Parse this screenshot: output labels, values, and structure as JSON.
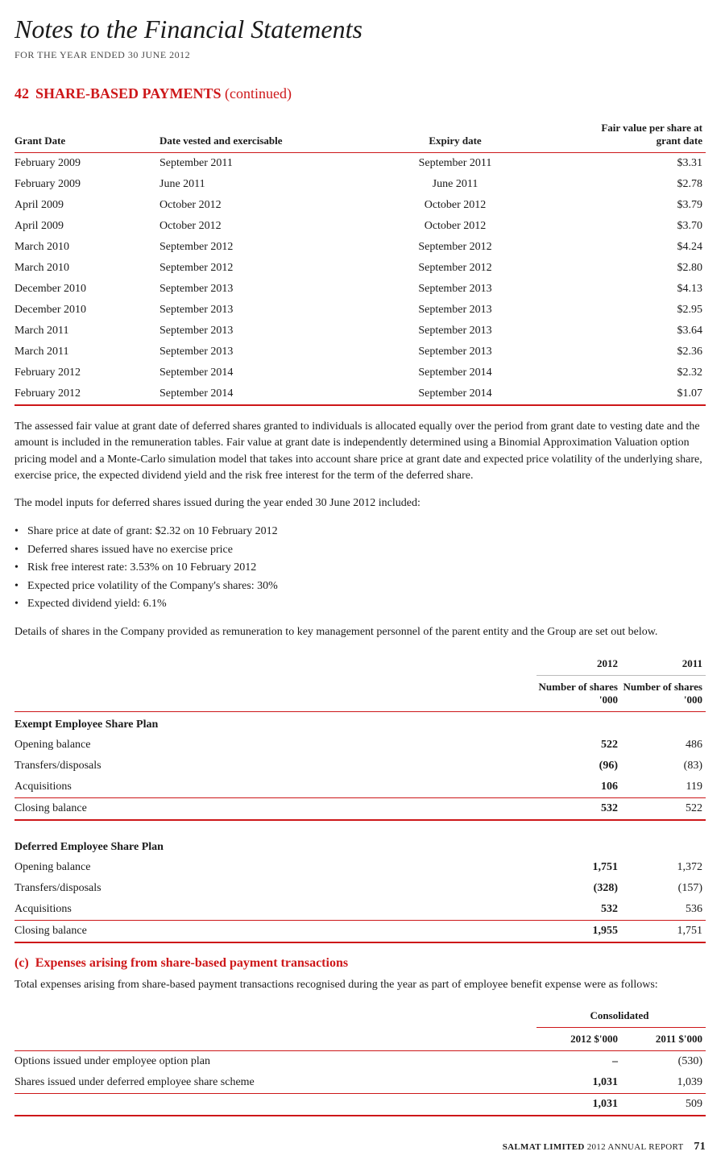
{
  "title": "Notes to the Financial Statements",
  "subtitle": "FOR THE YEAR ENDED 30 JUNE 2012",
  "section": {
    "number": "42",
    "label": "SHARE-BASED PAYMENTS",
    "continued": "(continued)"
  },
  "table1": {
    "headers": {
      "grant": "Grant Date",
      "vested": "Date vested and exercisable",
      "expiry": "Expiry date",
      "fair": "Fair value per share at grant date"
    },
    "rows": [
      {
        "grant": "February 2009",
        "vested": "September 2011",
        "expiry": "September 2011",
        "fair": "$3.31"
      },
      {
        "grant": "February 2009",
        "vested": "June 2011",
        "expiry": "June 2011",
        "fair": "$2.78"
      },
      {
        "grant": "April 2009",
        "vested": "October 2012",
        "expiry": "October 2012",
        "fair": "$3.79"
      },
      {
        "grant": "April 2009",
        "vested": "October 2012",
        "expiry": "October 2012",
        "fair": "$3.70"
      },
      {
        "grant": "March 2010",
        "vested": "September 2012",
        "expiry": "September 2012",
        "fair": "$4.24"
      },
      {
        "grant": "March 2010",
        "vested": "September 2012",
        "expiry": "September 2012",
        "fair": "$2.80"
      },
      {
        "grant": "December 2010",
        "vested": "September 2013",
        "expiry": "September 2013",
        "fair": "$4.13"
      },
      {
        "grant": "December 2010",
        "vested": "September 2013",
        "expiry": "September 2013",
        "fair": "$2.95"
      },
      {
        "grant": "March 2011",
        "vested": "September 2013",
        "expiry": "September 2013",
        "fair": "$3.64"
      },
      {
        "grant": "March 2011",
        "vested": "September 2013",
        "expiry": "September 2013",
        "fair": "$2.36"
      },
      {
        "grant": "February 2012",
        "vested": "September 2014",
        "expiry": "September 2014",
        "fair": "$2.32"
      },
      {
        "grant": "February 2012",
        "vested": "September 2014",
        "expiry": "September 2014",
        "fair": "$1.07"
      }
    ]
  },
  "para1": "The assessed fair value at grant date of deferred shares granted to individuals is allocated equally over the period from grant date to vesting date and the amount is included in the remuneration tables. Fair value at grant date is independently determined using a Binomial Approximation Valuation option pricing model and a Monte-Carlo simulation model that takes into account share price at grant date and expected price volatility of the underlying share, exercise price, the expected dividend yield and the risk free interest for the term of the deferred share.",
  "para2": "The model inputs for deferred shares issued during the year ended 30 June 2012 included:",
  "bullets": [
    "Share price at date of grant: $2.32 on 10 February 2012",
    "Deferred shares issued have no exercise price",
    "Risk free interest rate: 3.53% on 10 February 2012",
    "Expected price volatility of the Company's shares: 30%",
    "Expected dividend yield: 6.1%"
  ],
  "para3": "Details of shares in the Company provided as remuneration to key management personnel of the parent entity and the Group are set out below.",
  "table2": {
    "headers": {
      "y2012": "2012",
      "y2011": "2011",
      "unit2012": "Number of shares '000",
      "unit2011": "Number of shares '000"
    },
    "plan1": {
      "title": "Exempt Employee Share Plan",
      "rows": [
        {
          "label": "Opening balance",
          "y12": "522",
          "y11": "486"
        },
        {
          "label": "Transfers/disposals",
          "y12": "(96)",
          "y11": "(83)"
        },
        {
          "label": "Acquisitions",
          "y12": "106",
          "y11": "119"
        },
        {
          "label": "Closing balance",
          "y12": "532",
          "y11": "522"
        }
      ]
    },
    "plan2": {
      "title": "Deferred Employee Share Plan",
      "rows": [
        {
          "label": "Opening balance",
          "y12": "1,751",
          "y11": "1,372"
        },
        {
          "label": "Transfers/disposals",
          "y12": "(328)",
          "y11": "(157)"
        },
        {
          "label": "Acquisitions",
          "y12": "532",
          "y11": "536"
        },
        {
          "label": "Closing balance",
          "y12": "1,955",
          "y11": "1,751"
        }
      ]
    }
  },
  "subsection": {
    "letter": "(c)",
    "title": "Expenses arising from share-based payment transactions"
  },
  "para4": "Total expenses arising from share-based payment transactions recognised during the year as part of employee benefit expense were as follows:",
  "table3": {
    "header_group": "Consolidated",
    "headers": {
      "y2012": "2012 $'000",
      "y2011": "2011 $'000"
    },
    "rows": [
      {
        "label": "Options issued under employee option plan",
        "y12": "–",
        "y11": "(530)"
      },
      {
        "label": "Shares issued under deferred employee share scheme",
        "y12": "1,031",
        "y11": "1,039"
      }
    ],
    "total": {
      "y12": "1,031",
      "y11": "509"
    }
  },
  "footer": {
    "company": "SALMAT LIMITED",
    "text": "2012 ANNUAL REPORT",
    "page": "71"
  },
  "colors": {
    "red": "#cd1719",
    "text": "#1a1a1a",
    "rule_light": "#bcbcbc"
  }
}
